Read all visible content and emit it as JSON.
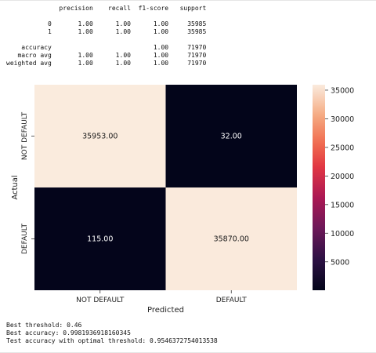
{
  "report": {
    "header": {
      "precision": "precision",
      "recall": "recall",
      "f1": "f1-score",
      "support": "support"
    },
    "rows": [
      {
        "label": "0",
        "precision": "1.00",
        "recall": "1.00",
        "f1": "1.00",
        "support": "35985"
      },
      {
        "label": "1",
        "precision": "1.00",
        "recall": "1.00",
        "f1": "1.00",
        "support": "35985"
      },
      {
        "label": "",
        "precision": "",
        "recall": "",
        "f1": "",
        "support": ""
      },
      {
        "label": "accuracy",
        "precision": "",
        "recall": "",
        "f1": "1.00",
        "support": "71970"
      },
      {
        "label": "macro avg",
        "precision": "1.00",
        "recall": "1.00",
        "f1": "1.00",
        "support": "71970"
      },
      {
        "label": "weighted avg",
        "precision": "1.00",
        "recall": "1.00",
        "f1": "1.00",
        "support": "71970"
      }
    ]
  },
  "chart_data": {
    "type": "heatmap",
    "xlabel": "Predicted",
    "ylabel": "Actual",
    "x_categories": [
      "NOT DEFAULT",
      "DEFAULT"
    ],
    "y_categories": [
      "NOT DEFAULT",
      "DEFAULT"
    ],
    "values": [
      [
        35953,
        32
      ],
      [
        115,
        35870
      ]
    ],
    "annotations": [
      [
        "35953.00",
        "32.00"
      ],
      [
        "115.00",
        "35870.00"
      ]
    ],
    "colorbar": {
      "range": [
        32,
        35953
      ],
      "ticks": [
        5000,
        10000,
        15000,
        20000,
        25000,
        30000,
        35000
      ]
    },
    "colors": {
      "high": "#faebdd",
      "low": "#03051a"
    }
  },
  "footer": {
    "best_threshold": "Best threshold: 0.46",
    "best_accuracy": "Best accuracy: 0.9981936918160345",
    "test_accuracy": "Test accuracy with optimal threshold: 0.9546372754013538"
  }
}
